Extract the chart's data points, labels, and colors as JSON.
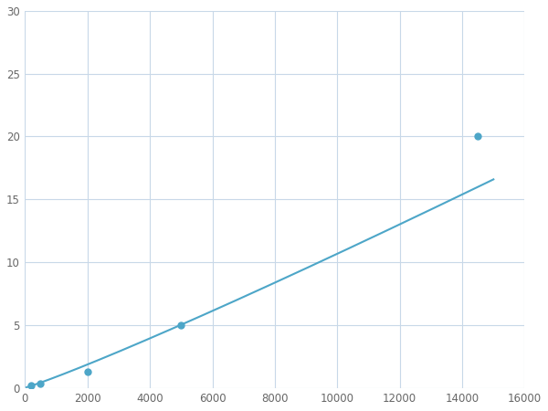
{
  "x_data": [
    200,
    500,
    2000,
    5000,
    14500
  ],
  "y_data": [
    0.2,
    0.35,
    1.3,
    5.0,
    20.0
  ],
  "line_color": "#4da6c8",
  "marker_color": "#4da6c8",
  "marker_size": 5,
  "line_width": 1.5,
  "xlim": [
    0,
    16000
  ],
  "ylim": [
    0,
    30
  ],
  "xticks": [
    0,
    2000,
    4000,
    6000,
    8000,
    10000,
    12000,
    14000,
    16000
  ],
  "yticks": [
    0,
    5,
    10,
    15,
    20,
    25,
    30
  ],
  "grid_color": "#c8d8e8",
  "background_color": "#ffffff",
  "figsize": [
    6.0,
    4.5
  ],
  "dpi": 100
}
